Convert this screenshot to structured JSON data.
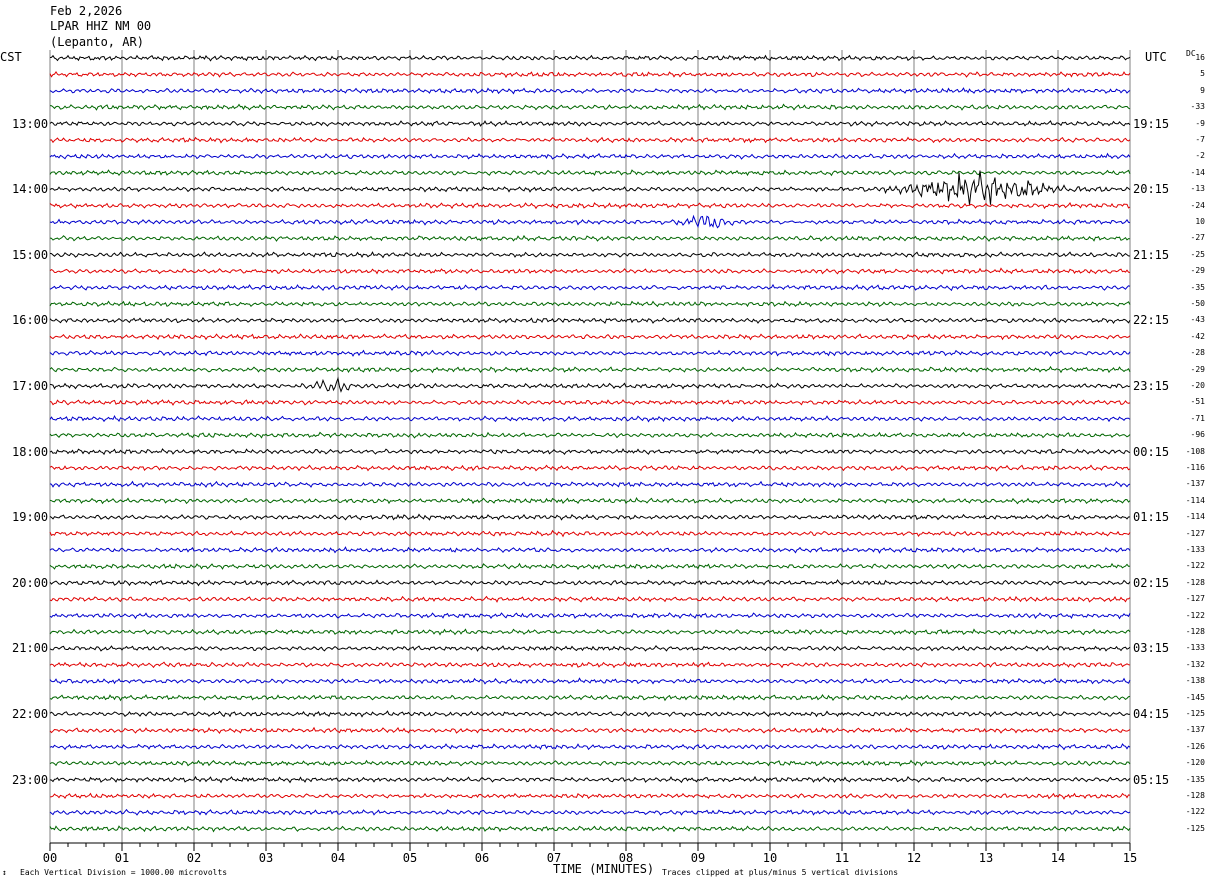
{
  "header": {
    "date": "Feb 2,2026",
    "station": "LPAR HHZ NM 00",
    "location": "(Lepanto, AR)"
  },
  "left_tz": "CST",
  "right_tz": "UTC",
  "dc_label": "DC",
  "footer": {
    "scale": "Each Vertical Division = 1000.00 microvolts",
    "xlabel": "TIME (MINUTES)",
    "clip_note": "Traces clipped at plus/minus 5 vertical divisions",
    "corner_mark": "↕"
  },
  "colors": {
    "trace_cycle": [
      "#000000",
      "#e00000",
      "#0000cc",
      "#006600"
    ],
    "grid": "#808080"
  },
  "chart_data": {
    "type": "line",
    "title": "",
    "xlabel": "TIME (MINUTES)",
    "x_ticks": [
      "00",
      "01",
      "02",
      "03",
      "04",
      "05",
      "06",
      "07",
      "08",
      "09",
      "10",
      "11",
      "12",
      "13",
      "14",
      "15"
    ],
    "xlim": [
      0,
      15
    ],
    "rows": 48,
    "left_hour_labels": [
      "13:00",
      "14:00",
      "15:00",
      "16:00",
      "17:00",
      "18:00",
      "19:00",
      "20:00",
      "21:00",
      "22:00",
      "23:00"
    ],
    "right_hour_labels": [
      "19:15",
      "20:15",
      "21:15",
      "22:15",
      "23:15",
      "00:15",
      "01:15",
      "02:15",
      "03:15",
      "04:15",
      "05:15"
    ],
    "dc_offsets": [
      "16",
      "5",
      "9",
      "-33",
      "-9",
      "-7",
      "-2",
      "-14",
      "-13",
      "-24",
      "10",
      "-27",
      "-25",
      "-29",
      "-35",
      "-50",
      "-43",
      "-42",
      "-28",
      "-29",
      "-20",
      "-51",
      "-71",
      "-96",
      "-108",
      "-116",
      "-137",
      "-114",
      "-114",
      "-127",
      "-133",
      "-122",
      "-128",
      "-127",
      "-122",
      "-128",
      "-133",
      "-132",
      "-138",
      "-145",
      "-125",
      "-137",
      "-126",
      "-120",
      "-135",
      "-128",
      "-122",
      "-125"
    ],
    "events": [
      {
        "row": 8,
        "minute": 12.9,
        "amplitude": "large"
      },
      {
        "row": 10,
        "minute": 9.1,
        "amplitude": "medium"
      },
      {
        "row": 20,
        "minute": 3.9,
        "amplitude": "small"
      }
    ]
  }
}
